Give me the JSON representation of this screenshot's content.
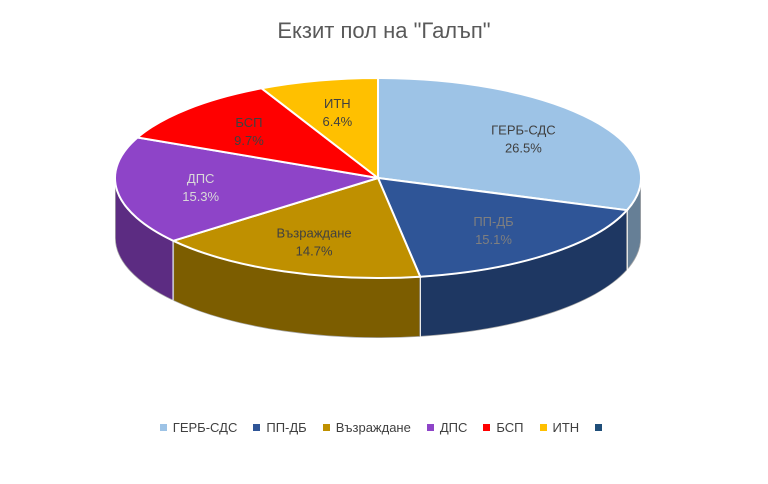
{
  "chart_data": {
    "type": "pie",
    "title": "Екзит пол на \"Галъп\"",
    "categories": [
      "ГЕРБ-СДС",
      "ПП-ДБ",
      "Възраждане",
      "ДПС",
      "БСП",
      "ИТН",
      ""
    ],
    "values": [
      26.5,
      15.1,
      14.7,
      15.3,
      9.7,
      6.4,
      0
    ],
    "data_labels": [
      "26.5%",
      "15.1%",
      "14.7%",
      "15.3%",
      "9.7%",
      "6.4%",
      ""
    ],
    "colors": [
      "#9dc3e6",
      "#2f5597",
      "#bf9000",
      "#8e44c8",
      "#ff0000",
      "#ffc000",
      "#1f4e79"
    ],
    "side_colors": [
      "#5b7fa0",
      "#122242",
      "#6e5300",
      "#55207f",
      "#aa0000",
      "#b88a00",
      "#0e2a45"
    ],
    "label_colors": [
      "#404040",
      "#7f7f7f",
      "#404040",
      "#d9d9d9",
      "#404040",
      "#404040",
      "#404040"
    ],
    "legend_position": "bottom",
    "style": "3d"
  }
}
